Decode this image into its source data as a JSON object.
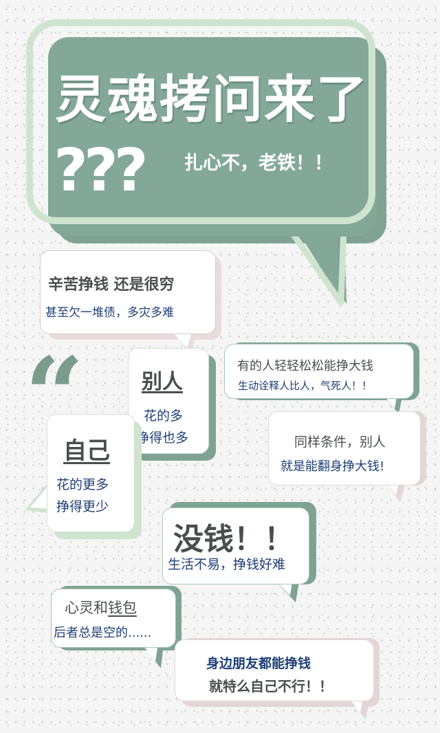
{
  "header": {
    "title": "灵魂拷问来了",
    "question_marks": "???",
    "subtitle": "扎心不，老铁！！"
  },
  "bubbles": {
    "b1": {
      "line1": "辛苦挣钱 还是很穷",
      "line2": "甚至欠一堆债，多灾多难"
    },
    "b2": {
      "title": "别人",
      "line1": "花的多",
      "line2": "挣得也多"
    },
    "b3": {
      "title": "自己",
      "line1": "花的更多",
      "line2": "挣得更少"
    },
    "b4": {
      "line1": "有的人轻轻松松能挣大钱",
      "line2": "生动诠释人比人，气死人！！"
    },
    "b5": {
      "line1": "同样条件，别人",
      "line2": "就是能翻身挣大钱!"
    },
    "b6": {
      "title": "没钱！！",
      "line1": "生活不易，挣钱好难"
    },
    "b7": {
      "line1_a": "心灵和",
      "line1_b": "钱包",
      "line2": "后者总是空的......"
    },
    "b8": {
      "line1": "身边朋友都能挣钱",
      "line2": "就特么自己不行！！"
    }
  },
  "decor": {
    "quote_icon": "quote-icon"
  },
  "colors": {
    "accent_green": "#83a897",
    "light_green": "#cfe4cf",
    "pink_shadow": "#e3d6d6",
    "navy_text": "#1d3f76",
    "dark_text": "#4a4e4c"
  }
}
